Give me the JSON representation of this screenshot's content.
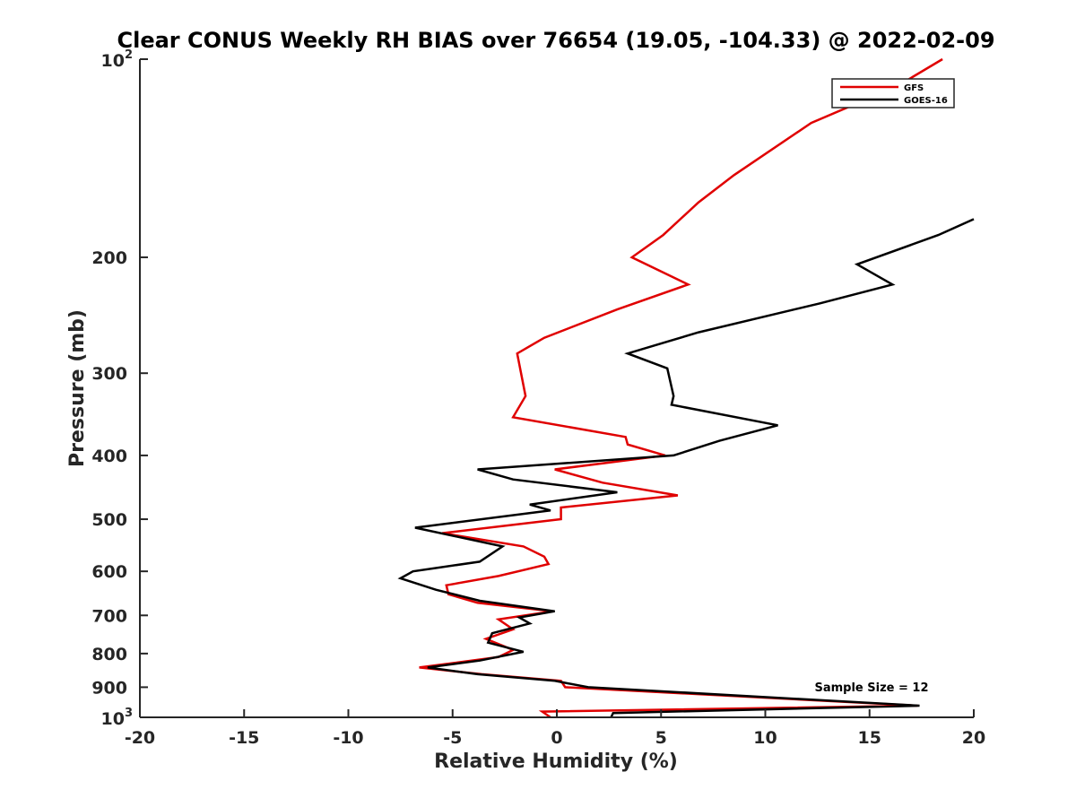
{
  "chart_data": {
    "type": "line",
    "title": "Clear CONUS Weekly RH BIAS over 76654 (19.05, -104.33) @ 2022-02-09",
    "xlabel": "Relative Humidity (%)",
    "ylabel": "Pressure (mb)",
    "xlim": [
      -20,
      20
    ],
    "ylim": [
      100,
      1000
    ],
    "yscale": "log",
    "y_reversed": true,
    "grid": false,
    "legend_location": "top-right",
    "x_ticks": [
      -20,
      -15,
      -10,
      -5,
      0,
      5,
      10,
      15,
      20
    ],
    "x_tick_labels": [
      "-20",
      "-15",
      "-10",
      "-5",
      "0",
      "5",
      "10",
      "15",
      "20"
    ],
    "y_ticks": [
      {
        "value": 100,
        "label": "10",
        "sup": "2"
      },
      {
        "value": 200,
        "label": "200"
      },
      {
        "value": 300,
        "label": "300"
      },
      {
        "value": 400,
        "label": "400"
      },
      {
        "value": 500,
        "label": "500"
      },
      {
        "value": 600,
        "label": "600"
      },
      {
        "value": 700,
        "label": "700"
      },
      {
        "value": 800,
        "label": "800"
      },
      {
        "value": 900,
        "label": "900"
      },
      {
        "value": 1000,
        "label": "10",
        "sup": "3"
      }
    ],
    "annotation": "Sample Size = 12",
    "series": [
      {
        "name": "GFS",
        "color": "#e00000",
        "points": [
          [
            18.5,
            100
          ],
          [
            16.3,
            110
          ],
          [
            12.2,
            125
          ],
          [
            8.5,
            150
          ],
          [
            6.8,
            165
          ],
          [
            5.1,
            185
          ],
          [
            3.6,
            200
          ],
          [
            6.3,
            220
          ],
          [
            2.9,
            240
          ],
          [
            -0.6,
            265
          ],
          [
            -1.9,
            280
          ],
          [
            -1.5,
            325
          ],
          [
            -2.1,
            350
          ],
          [
            3.3,
            375
          ],
          [
            3.4,
            385
          ],
          [
            5.2,
            400
          ],
          [
            -0.1,
            420
          ],
          [
            2.2,
            440
          ],
          [
            5.8,
            460
          ],
          [
            0.2,
            480
          ],
          [
            0.2,
            500
          ],
          [
            -5.5,
            525
          ],
          [
            -1.6,
            550
          ],
          [
            -0.6,
            570
          ],
          [
            -0.4,
            585
          ],
          [
            -2.8,
            610
          ],
          [
            -5.3,
            630
          ],
          [
            -5.2,
            650
          ],
          [
            -3.8,
            670
          ],
          [
            -0.2,
            690
          ],
          [
            -2.8,
            710
          ],
          [
            -2.1,
            735
          ],
          [
            -3.4,
            760
          ],
          [
            -2.1,
            790
          ],
          [
            -2.8,
            810
          ],
          [
            -6.6,
            840
          ],
          [
            -3.6,
            860
          ],
          [
            0.2,
            880
          ],
          [
            0.4,
            900
          ],
          [
            17.3,
            960
          ],
          [
            -0.7,
            980
          ],
          [
            -0.3,
            1000
          ]
        ]
      },
      {
        "name": "GOES-16",
        "color": "#000000",
        "points": [
          [
            20.0,
            175
          ],
          [
            18.3,
            185
          ],
          [
            14.4,
            205
          ],
          [
            16.1,
            220
          ],
          [
            12.6,
            235
          ],
          [
            6.8,
            260
          ],
          [
            3.4,
            280
          ],
          [
            5.3,
            295
          ],
          [
            5.6,
            325
          ],
          [
            5.5,
            335
          ],
          [
            10.6,
            360
          ],
          [
            7.8,
            380
          ],
          [
            5.6,
            400
          ],
          [
            -3.8,
            420
          ],
          [
            -2.1,
            435
          ],
          [
            2.9,
            455
          ],
          [
            -1.3,
            475
          ],
          [
            -0.3,
            485
          ],
          [
            -6.8,
            515
          ],
          [
            -2.6,
            550
          ],
          [
            -3.7,
            580
          ],
          [
            -6.9,
            600
          ],
          [
            -7.5,
            615
          ],
          [
            -5.8,
            640
          ],
          [
            -3.7,
            665
          ],
          [
            -0.1,
            690
          ],
          [
            -1.8,
            705
          ],
          [
            -1.3,
            720
          ],
          [
            -3.1,
            745
          ],
          [
            -3.3,
            770
          ],
          [
            -1.6,
            795
          ],
          [
            -3.7,
            820
          ],
          [
            -6.2,
            840
          ],
          [
            -3.8,
            860
          ],
          [
            -0.1,
            880
          ],
          [
            1.5,
            900
          ],
          [
            17.4,
            960
          ],
          [
            2.7,
            985
          ],
          [
            2.6,
            1000
          ]
        ]
      }
    ]
  }
}
